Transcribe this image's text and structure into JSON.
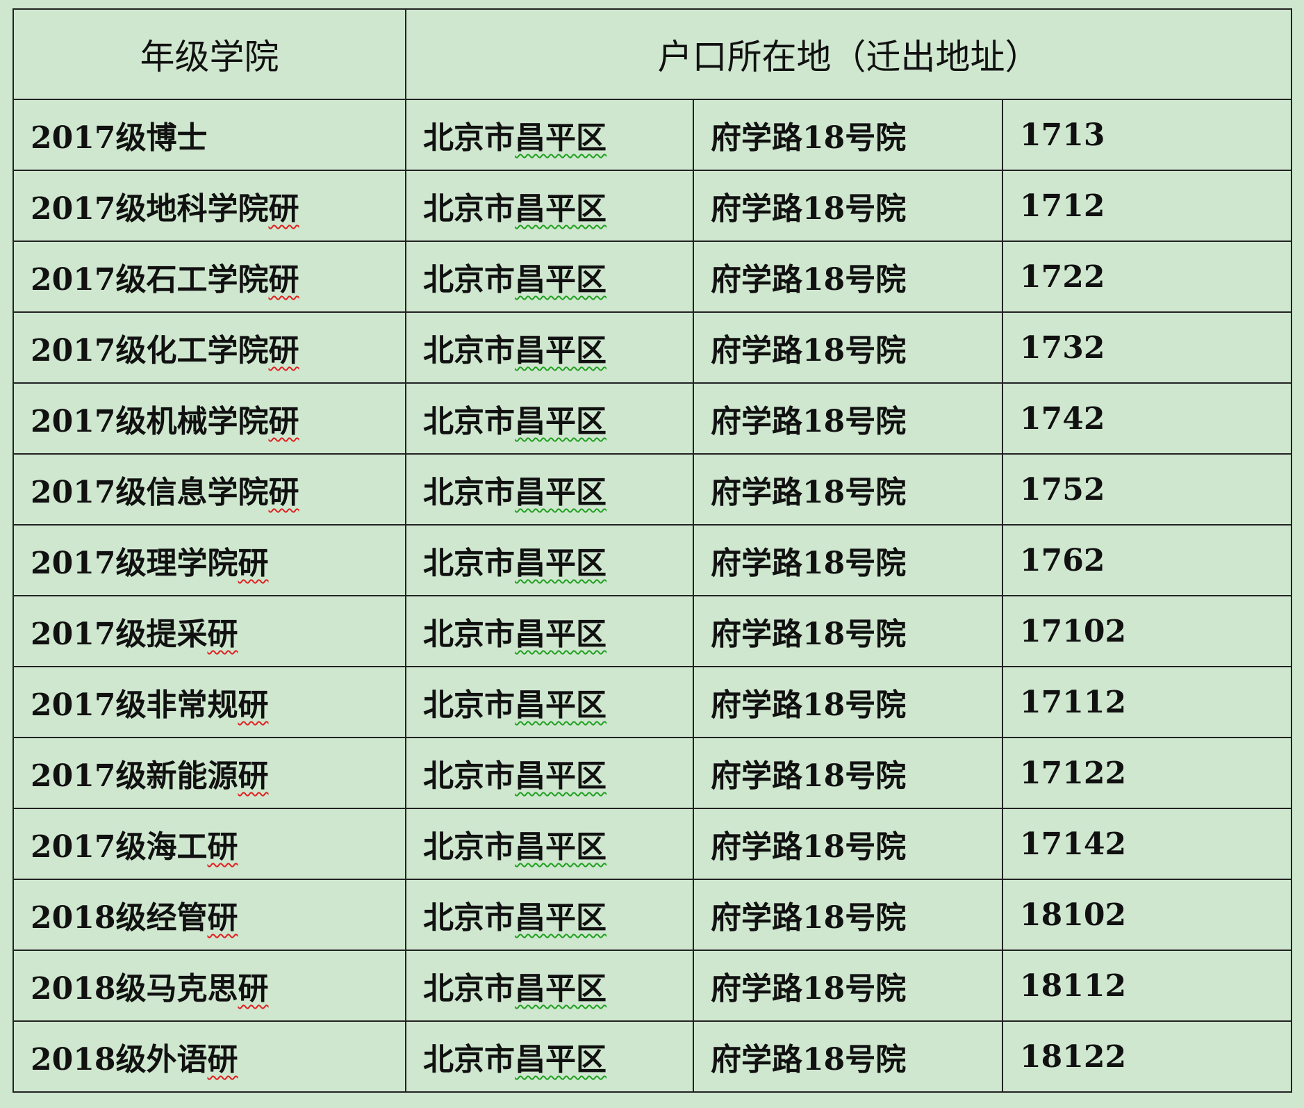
{
  "header": {
    "col1": "年级学院",
    "col2": "户口所在地（迁出地址）"
  },
  "rows": [
    {
      "grade": "2017级博士",
      "city": "北京市",
      "district": "昌平区",
      "street": "府学路18号院",
      "number": "1713"
    },
    {
      "grade": "2017级地科学院",
      "grade_flag": "研",
      "city": "北京市",
      "district": "昌平区",
      "street": "府学路18号院",
      "number": "1712"
    },
    {
      "grade": "2017级石工学院",
      "grade_flag": "研",
      "city": "北京市",
      "district": "昌平区",
      "street": "府学路18号院",
      "number": "1722"
    },
    {
      "grade": "2017级化工学院",
      "grade_flag": "研",
      "city": "北京市",
      "district": "昌平区",
      "street": "府学路18号院",
      "number": "1732"
    },
    {
      "grade": "2017级机械学院",
      "grade_flag": "研",
      "city": "北京市",
      "district": "昌平区",
      "street": "府学路18号院",
      "number": "1742"
    },
    {
      "grade": "2017级信息学院",
      "grade_flag": "研",
      "city": "北京市",
      "district": "昌平区",
      "street": "府学路18号院",
      "number": "1752"
    },
    {
      "grade": "2017级理学院",
      "grade_flag": "研",
      "city": "北京市",
      "district": "昌平区",
      "street": "府学路18号院",
      "number": "1762"
    },
    {
      "grade": "2017级提采",
      "grade_flag": "研",
      "city": "北京市",
      "district": "昌平区",
      "street": "府学路18号院",
      "number": "17102"
    },
    {
      "grade": "2017级非常规",
      "grade_flag": "研",
      "city": "北京市",
      "district": "昌平区",
      "street": "府学路18号院",
      "number": "17112"
    },
    {
      "grade": "2017级新能源",
      "grade_flag": "研",
      "city": "北京市",
      "district": "昌平区",
      "street": "府学路18号院",
      "number": "17122"
    },
    {
      "grade": "2017级海工",
      "grade_flag": "研",
      "city": "北京市",
      "district": "昌平区",
      "street": "府学路18号院",
      "number": "17142"
    },
    {
      "grade": "2018级经管",
      "grade_flag": "研",
      "city": "北京市",
      "district": "昌平区",
      "street": "府学路18号院",
      "number": "18102"
    },
    {
      "grade": "2018级马克思",
      "grade_flag": "研",
      "city": "北京市",
      "district": "昌平区",
      "street": "府学路18号院",
      "number": "18112"
    },
    {
      "grade": "2018级外语",
      "grade_flag": "研",
      "city": "北京市",
      "district": "昌平区",
      "street": "府学路18号院",
      "number": "18122"
    }
  ],
  "colors": {
    "background": "#cfe7cf",
    "spell_error": "#e02020",
    "grammar_mark": "#20a020"
  }
}
